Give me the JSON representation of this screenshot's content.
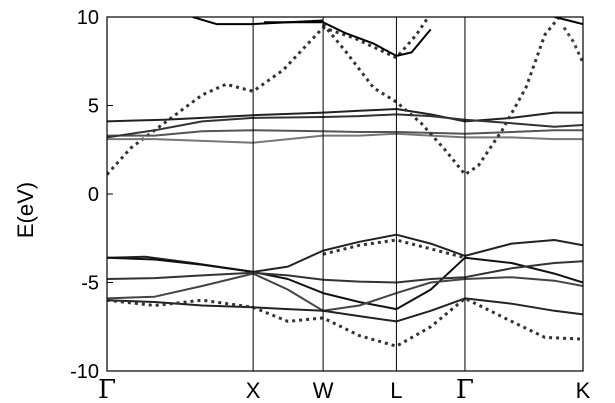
{
  "chart_data": {
    "type": "line",
    "title": "",
    "xlabel": "",
    "ylabel": "E(eV)",
    "ylim": [
      -10,
      10
    ],
    "yticks": [
      10,
      5,
      0,
      -5,
      -10
    ],
    "xlim": [
      0,
      1
    ],
    "kpoints": [
      {
        "label": "Γ",
        "x": 0.0,
        "greek": true
      },
      {
        "label": "X",
        "x": 0.307,
        "greek": false
      },
      {
        "label": "W",
        "x": 0.454,
        "greek": false
      },
      {
        "label": "L",
        "x": 0.608,
        "greek": false
      },
      {
        "label": "Γ",
        "x": 0.752,
        "greek": true
      },
      {
        "label": "K",
        "x": 1.0,
        "greek": false
      }
    ],
    "grid": false,
    "series": [
      {
        "style": "solid",
        "color": "#222222",
        "points": [
          [
            0.0,
            -3.6
          ],
          [
            0.08,
            -3.55
          ],
          [
            0.18,
            -3.9
          ],
          [
            0.307,
            -4.4
          ],
          [
            0.38,
            -4.1
          ],
          [
            0.454,
            -3.2
          ],
          [
            0.53,
            -2.7
          ],
          [
            0.608,
            -2.3
          ],
          [
            0.68,
            -2.8
          ],
          [
            0.752,
            -3.5
          ],
          [
            0.85,
            -2.8
          ],
          [
            0.94,
            -2.6
          ],
          [
            1.0,
            -2.9
          ]
        ]
      },
      {
        "style": "solid",
        "color": "#111111",
        "points": [
          [
            0.0,
            -3.6
          ],
          [
            0.1,
            -3.7
          ],
          [
            0.2,
            -4.0
          ],
          [
            0.307,
            -4.4
          ],
          [
            0.38,
            -4.8
          ],
          [
            0.454,
            -5.6
          ],
          [
            0.53,
            -6.1
          ],
          [
            0.608,
            -6.5
          ],
          [
            0.68,
            -5.4
          ],
          [
            0.752,
            -3.6
          ],
          [
            0.85,
            -3.9
          ],
          [
            0.94,
            -4.5
          ],
          [
            1.0,
            -5.0
          ]
        ]
      },
      {
        "style": "solid",
        "color": "#333333",
        "points": [
          [
            0.0,
            -4.8
          ],
          [
            0.1,
            -4.75
          ],
          [
            0.2,
            -4.6
          ],
          [
            0.307,
            -4.45
          ],
          [
            0.38,
            -4.6
          ],
          [
            0.454,
            -4.85
          ],
          [
            0.53,
            -4.95
          ],
          [
            0.608,
            -5.0
          ],
          [
            0.68,
            -4.8
          ],
          [
            0.752,
            -4.7
          ],
          [
            0.85,
            -4.2
          ],
          [
            0.94,
            -3.9
          ],
          [
            1.0,
            -3.8
          ]
        ]
      },
      {
        "style": "solid",
        "color": "#444444",
        "points": [
          [
            0.0,
            -5.9
          ],
          [
            0.1,
            -5.8
          ],
          [
            0.2,
            -5.2
          ],
          [
            0.307,
            -4.5
          ],
          [
            0.38,
            -5.4
          ],
          [
            0.454,
            -6.6
          ],
          [
            0.53,
            -6.3
          ],
          [
            0.608,
            -5.6
          ],
          [
            0.68,
            -5.0
          ],
          [
            0.752,
            -4.8
          ],
          [
            0.85,
            -4.7
          ],
          [
            0.94,
            -4.9
          ],
          [
            1.0,
            -5.2
          ]
        ]
      },
      {
        "style": "solid",
        "color": "#222222",
        "points": [
          [
            0.0,
            -6.0
          ],
          [
            0.1,
            -6.1
          ],
          [
            0.2,
            -6.3
          ],
          [
            0.307,
            -6.4
          ],
          [
            0.38,
            -6.5
          ],
          [
            0.454,
            -6.6
          ],
          [
            0.53,
            -6.9
          ],
          [
            0.608,
            -7.2
          ],
          [
            0.68,
            -6.6
          ],
          [
            0.752,
            -5.9
          ],
          [
            0.85,
            -6.2
          ],
          [
            0.94,
            -6.6
          ],
          [
            1.0,
            -6.8
          ]
        ]
      },
      {
        "style": "dashed",
        "color": "#333333",
        "points": [
          [
            0.0,
            -6.0
          ],
          [
            0.1,
            -6.3
          ],
          [
            0.2,
            -6.0
          ],
          [
            0.307,
            -6.4
          ],
          [
            0.38,
            -7.2
          ],
          [
            0.454,
            -7.0
          ],
          [
            0.53,
            -8.0
          ],
          [
            0.608,
            -8.6
          ],
          [
            0.68,
            -7.5
          ],
          [
            0.752,
            -5.9
          ],
          [
            0.85,
            -7.2
          ],
          [
            0.92,
            -8.1
          ],
          [
            1.0,
            -8.2
          ]
        ]
      },
      {
        "style": "dashed",
        "color": "#333333",
        "points": [
          [
            0.454,
            -3.4
          ],
          [
            0.53,
            -2.9
          ],
          [
            0.608,
            -2.6
          ],
          [
            0.68,
            -3.1
          ],
          [
            0.752,
            -3.6
          ]
        ]
      },
      {
        "style": "dashed",
        "color": "#333333",
        "points": [
          [
            0.0,
            1.1
          ],
          [
            0.05,
            2.6
          ],
          [
            0.12,
            4.0
          ],
          [
            0.2,
            5.6
          ],
          [
            0.25,
            6.2
          ],
          [
            0.307,
            5.8
          ],
          [
            0.37,
            7.0
          ],
          [
            0.454,
            9.4
          ],
          [
            0.52,
            8.8
          ],
          [
            0.608,
            7.7
          ],
          [
            0.65,
            9.0
          ],
          [
            0.7,
            11.0
          ]
        ]
      },
      {
        "style": "solid",
        "color": "#222222",
        "points": [
          [
            0.0,
            4.1
          ],
          [
            0.12,
            4.2
          ],
          [
            0.2,
            4.3
          ],
          [
            0.307,
            4.45
          ],
          [
            0.454,
            4.6
          ],
          [
            0.53,
            4.7
          ],
          [
            0.608,
            4.8
          ],
          [
            0.68,
            4.5
          ],
          [
            0.752,
            4.1
          ],
          [
            0.85,
            4.3
          ],
          [
            0.94,
            4.6
          ],
          [
            1.0,
            4.6
          ]
        ]
      },
      {
        "style": "solid",
        "color": "#555555",
        "points": [
          [
            0.0,
            3.3
          ],
          [
            0.1,
            3.3
          ],
          [
            0.2,
            3.55
          ],
          [
            0.307,
            3.6
          ],
          [
            0.454,
            3.55
          ],
          [
            0.53,
            3.5
          ],
          [
            0.608,
            3.5
          ],
          [
            0.68,
            3.45
          ],
          [
            0.752,
            3.4
          ],
          [
            0.85,
            3.5
          ],
          [
            0.94,
            3.6
          ],
          [
            1.0,
            3.6
          ]
        ]
      },
      {
        "style": "solid",
        "color": "#777777",
        "points": [
          [
            0.0,
            3.1
          ],
          [
            0.1,
            3.1
          ],
          [
            0.2,
            3.0
          ],
          [
            0.307,
            2.9
          ],
          [
            0.454,
            3.3
          ],
          [
            0.53,
            3.3
          ],
          [
            0.608,
            3.4
          ],
          [
            0.68,
            3.3
          ],
          [
            0.752,
            3.2
          ],
          [
            0.85,
            3.2
          ],
          [
            0.94,
            3.1
          ],
          [
            1.0,
            3.1
          ]
        ]
      },
      {
        "style": "solid",
        "color": "#333333",
        "points": [
          [
            0.0,
            3.2
          ],
          [
            0.1,
            3.6
          ],
          [
            0.2,
            4.1
          ],
          [
            0.307,
            4.3
          ],
          [
            0.454,
            4.35
          ],
          [
            0.53,
            4.4
          ],
          [
            0.608,
            4.5
          ],
          [
            0.68,
            4.4
          ],
          [
            0.752,
            4.2
          ],
          [
            0.85,
            4.0
          ],
          [
            0.94,
            3.8
          ],
          [
            1.0,
            3.9
          ]
        ]
      },
      {
        "style": "solid",
        "color": "#000000",
        "points": [
          [
            0.33,
            9.7
          ],
          [
            0.4,
            9.7
          ],
          [
            0.454,
            9.7
          ],
          [
            0.5,
            9.1
          ],
          [
            0.56,
            8.5
          ],
          [
            0.608,
            7.8
          ],
          [
            0.64,
            8.0
          ],
          [
            0.68,
            9.3
          ]
        ]
      },
      {
        "style": "solid",
        "color": "#000000",
        "points": [
          [
            0.18,
            10.0
          ],
          [
            0.23,
            9.6
          ],
          [
            0.307,
            9.6
          ],
          [
            0.454,
            9.8
          ]
        ]
      },
      {
        "style": "dashed",
        "color": "#333333",
        "points": [
          [
            0.454,
            9.6
          ],
          [
            0.5,
            8.1
          ],
          [
            0.56,
            6.0
          ],
          [
            0.608,
            5.2
          ],
          [
            0.66,
            4.0
          ],
          [
            0.71,
            2.5
          ],
          [
            0.752,
            1.1
          ],
          [
            0.78,
            1.6
          ],
          [
            0.83,
            3.6
          ],
          [
            0.88,
            6.0
          ],
          [
            0.92,
            9.0
          ],
          [
            0.95,
            10.0
          ]
        ]
      },
      {
        "style": "solid",
        "color": "#000000",
        "points": [
          [
            0.94,
            10.0
          ],
          [
            0.97,
            9.8
          ],
          [
            1.0,
            9.6
          ]
        ]
      },
      {
        "style": "dashed",
        "color": "#444444",
        "points": [
          [
            0.96,
            9.4
          ],
          [
            0.98,
            8.6
          ],
          [
            1.0,
            7.4
          ]
        ]
      }
    ]
  }
}
